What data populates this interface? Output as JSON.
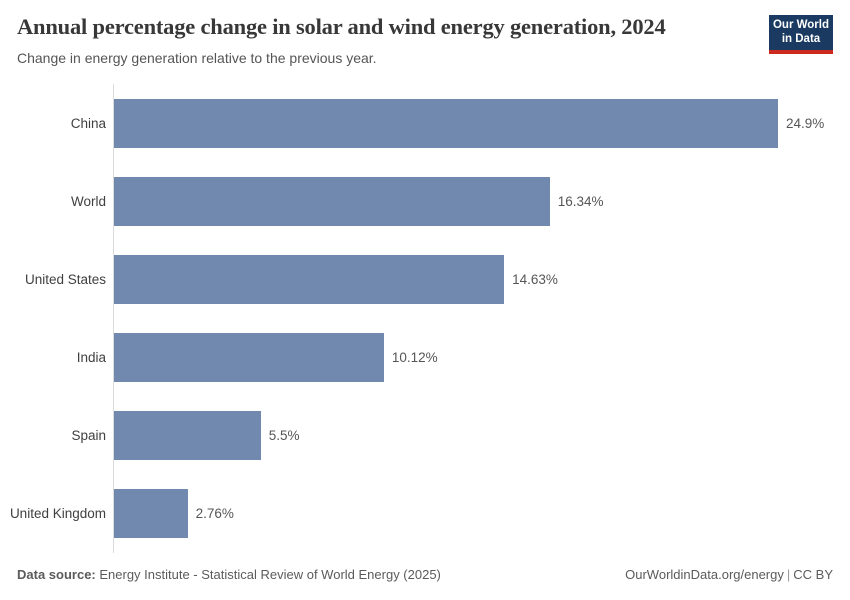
{
  "header": {
    "title": "Annual percentage change in solar and wind energy generation, 2024",
    "subtitle": "Change in energy generation relative to the previous year.",
    "logo": {
      "line1": "Our World",
      "line2": "in Data",
      "background_color": "#1a3a62",
      "accent_color": "#cc2a1f"
    }
  },
  "chart_data": {
    "type": "bar",
    "orientation": "horizontal",
    "title": "Annual percentage change in solar and wind energy generation, 2024",
    "categories": [
      "China",
      "World",
      "United States",
      "India",
      "Spain",
      "United Kingdom"
    ],
    "values": [
      24.9,
      16.34,
      14.63,
      10.12,
      5.5,
      2.76
    ],
    "value_labels": [
      "24.9%",
      "16.34%",
      "14.63%",
      "10.12%",
      "5.5%",
      "2.76%"
    ],
    "unit": "%",
    "xlim": [
      0,
      24.9
    ],
    "grid": false,
    "legend": "none",
    "bar_color": "#7189ae",
    "axis_color": "#dbdbdb"
  },
  "footer": {
    "source_label": "Data source:",
    "source_text": " Energy Institute - Statistical Review of World Energy (2025)",
    "link": "OurWorldinData.org/energy",
    "separator": "|",
    "license": "CC BY"
  }
}
